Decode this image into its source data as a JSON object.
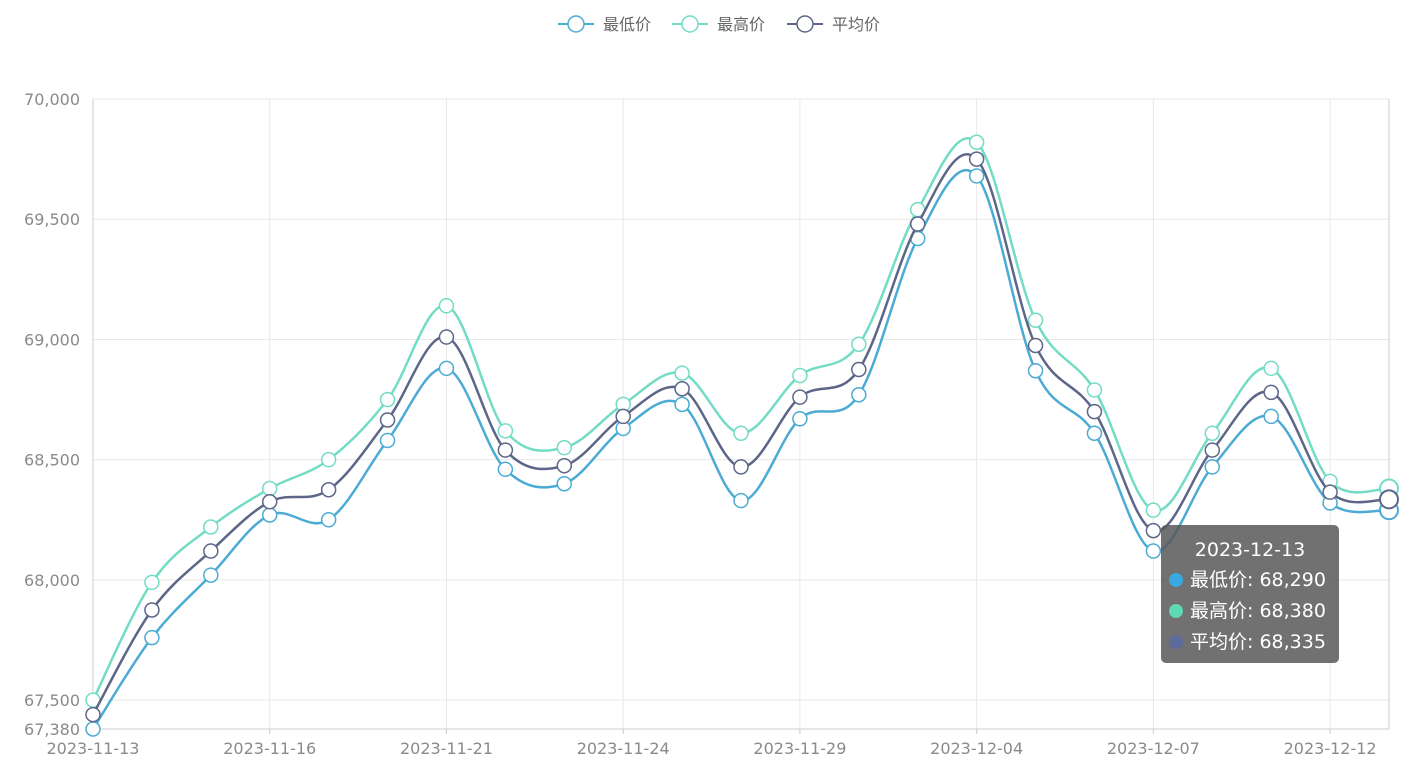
{
  "chart_data": {
    "type": "line",
    "smooth": true,
    "title": "",
    "xlabel": "",
    "ylabel": "",
    "ylim": [
      67380,
      70000
    ],
    "yticks": [
      67380,
      67500,
      68000,
      68500,
      69000,
      69500,
      70000
    ],
    "ytick_labels": [
      "67,380",
      "67,500",
      "68,000",
      "68,500",
      "69,000",
      "69,500",
      "70,000"
    ],
    "x": [
      "2023-11-13",
      "2023-11-14",
      "2023-11-15",
      "2023-11-16",
      "2023-11-17",
      "2023-11-20",
      "2023-11-21",
      "2023-11-22",
      "2023-11-23",
      "2023-11-24",
      "2023-11-27",
      "2023-11-28",
      "2023-11-29",
      "2023-11-30",
      "2023-12-01",
      "2023-12-04",
      "2023-12-05",
      "2023-12-06",
      "2023-12-07",
      "2023-12-08",
      "2023-12-11",
      "2023-12-12",
      "2023-12-13"
    ],
    "xtick_labels": [
      "2023-11-13",
      "2023-11-16",
      "2023-11-21",
      "2023-11-24",
      "2023-11-29",
      "2023-12-04",
      "2023-12-07",
      "2023-12-12"
    ],
    "grid": true,
    "legend_position": "top-center",
    "series": [
      {
        "name": "最低价",
        "color": "#4cabd4",
        "values": [
          67380,
          67760,
          68020,
          68270,
          68250,
          68580,
          68880,
          68460,
          68400,
          68630,
          68730,
          68330,
          68670,
          68770,
          69420,
          69680,
          68870,
          68610,
          68120,
          68470,
          68680,
          68320,
          68290
        ]
      },
      {
        "name": "最高价",
        "color": "#72dcc4",
        "values": [
          67500,
          67990,
          68220,
          68380,
          68500,
          68750,
          69140,
          68620,
          68550,
          68730,
          68860,
          68610,
          68850,
          68980,
          69540,
          69820,
          69080,
          68790,
          68290,
          68610,
          68880,
          68410,
          68380
        ]
      },
      {
        "name": "平均价",
        "color": "#5d6688",
        "values": [
          67440,
          67875,
          68120,
          68325,
          68375,
          68665,
          69010,
          68540,
          68475,
          68680,
          68795,
          68470,
          68760,
          68875,
          69480,
          69750,
          68975,
          68700,
          68205,
          68540,
          68780,
          68365,
          68335
        ]
      }
    ]
  },
  "tooltip": {
    "title": "2023-12-13",
    "rows": [
      {
        "label": "最低价: 68,290",
        "color": "#3aa8e0"
      },
      {
        "label": "最高价: 68,380",
        "color": "#5fd8b4"
      },
      {
        "label": "平均价: 68,335",
        "color": "#5d6a9c"
      }
    ]
  }
}
